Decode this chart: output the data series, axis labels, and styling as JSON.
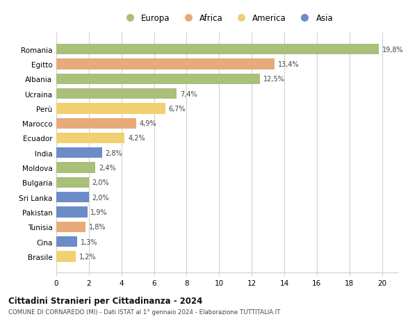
{
  "categories": [
    "Romania",
    "Egitto",
    "Albania",
    "Ucraina",
    "Perù",
    "Marocco",
    "Ecuador",
    "India",
    "Moldova",
    "Bulgaria",
    "Sri Lanka",
    "Pakistan",
    "Tunisia",
    "Cina",
    "Brasile"
  ],
  "values": [
    19.8,
    13.4,
    12.5,
    7.4,
    6.7,
    4.9,
    4.2,
    2.8,
    2.4,
    2.0,
    2.0,
    1.9,
    1.8,
    1.3,
    1.2
  ],
  "labels": [
    "19,8%",
    "13,4%",
    "12,5%",
    "7,4%",
    "6,7%",
    "4,9%",
    "4,2%",
    "2,8%",
    "2,4%",
    "2,0%",
    "2,0%",
    "1,9%",
    "1,8%",
    "1,3%",
    "1,2%"
  ],
  "regions": [
    "Europa",
    "Africa",
    "Europa",
    "Europa",
    "America",
    "Africa",
    "America",
    "Asia",
    "Europa",
    "Europa",
    "Asia",
    "Asia",
    "Africa",
    "Asia",
    "America"
  ],
  "colors": {
    "Europa": "#a8c07a",
    "Africa": "#e8aa78",
    "America": "#f0d070",
    "Asia": "#6b8cc7"
  },
  "xlim": [
    0,
    21
  ],
  "xticks": [
    0,
    2,
    4,
    6,
    8,
    10,
    12,
    14,
    16,
    18,
    20
  ],
  "title": "Cittadini Stranieri per Cittadinanza - 2024",
  "subtitle": "COMUNE DI CORNAREDO (MI) - Dati ISTAT al 1° gennaio 2024 - Elaborazione TUTTITALIA.IT",
  "background_color": "#ffffff",
  "grid_color": "#d0d0d0",
  "bar_height": 0.72,
  "legend_order": [
    "Europa",
    "Africa",
    "America",
    "Asia"
  ]
}
